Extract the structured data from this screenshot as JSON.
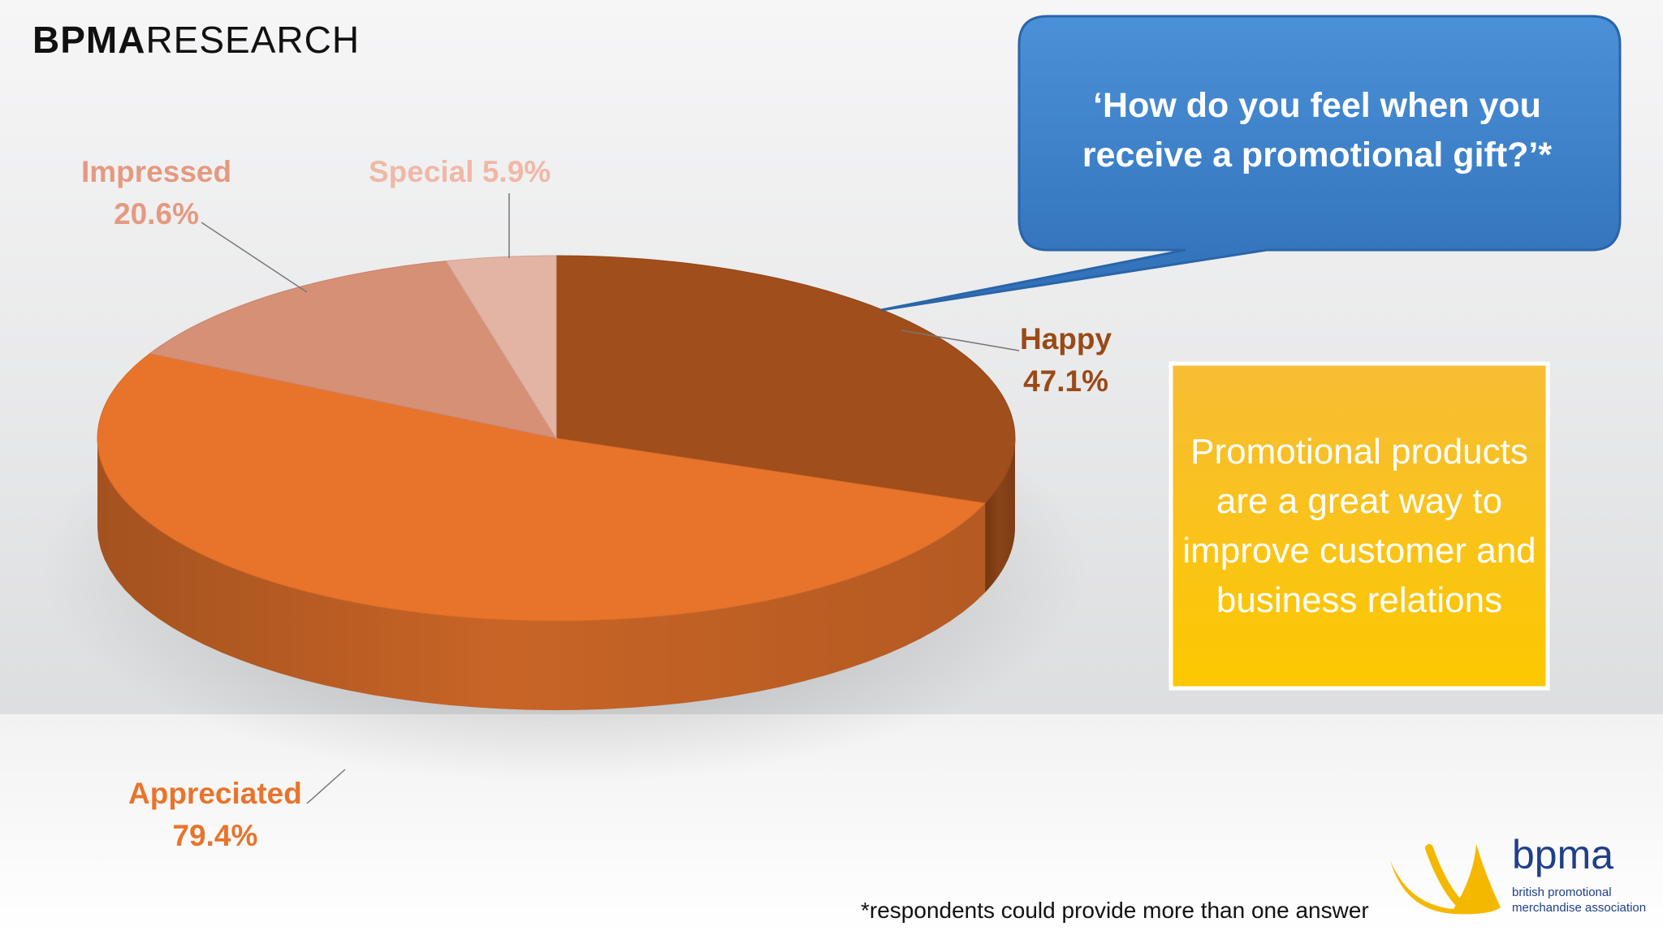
{
  "brand": {
    "bold": "BPMA",
    "regular": "RESEARCH"
  },
  "question": {
    "line1": "‘How do you feel when you",
    "line2": "receive a promotional gift?’*"
  },
  "note": {
    "text": "Promotional products are a great way to improve customer and business relations"
  },
  "footnote": "*respondents could provide more than one answer",
  "logo": {
    "word": "bpma",
    "line1": "british promotional",
    "line2": "merchandise association"
  },
  "colors": {
    "question_box": "#3a7fc9",
    "note_box": "#f5b800",
    "happy": "#a04e1b",
    "appreciated": "#e8742c",
    "impressed": "#d69076",
    "special": "#e3b3a3"
  },
  "chart_data": {
    "type": "pie",
    "style": "3d",
    "legend": "none",
    "series": [
      {
        "name": "Happy",
        "value": 47.1,
        "value_label": "47.1%"
      },
      {
        "name": "Appreciated",
        "value": 79.4,
        "value_label": "79.4%"
      },
      {
        "name": "Impressed",
        "value": 20.6,
        "value_label": "20.6%"
      },
      {
        "name": "Special",
        "value": 5.9,
        "value_label": "5.9%"
      }
    ]
  }
}
